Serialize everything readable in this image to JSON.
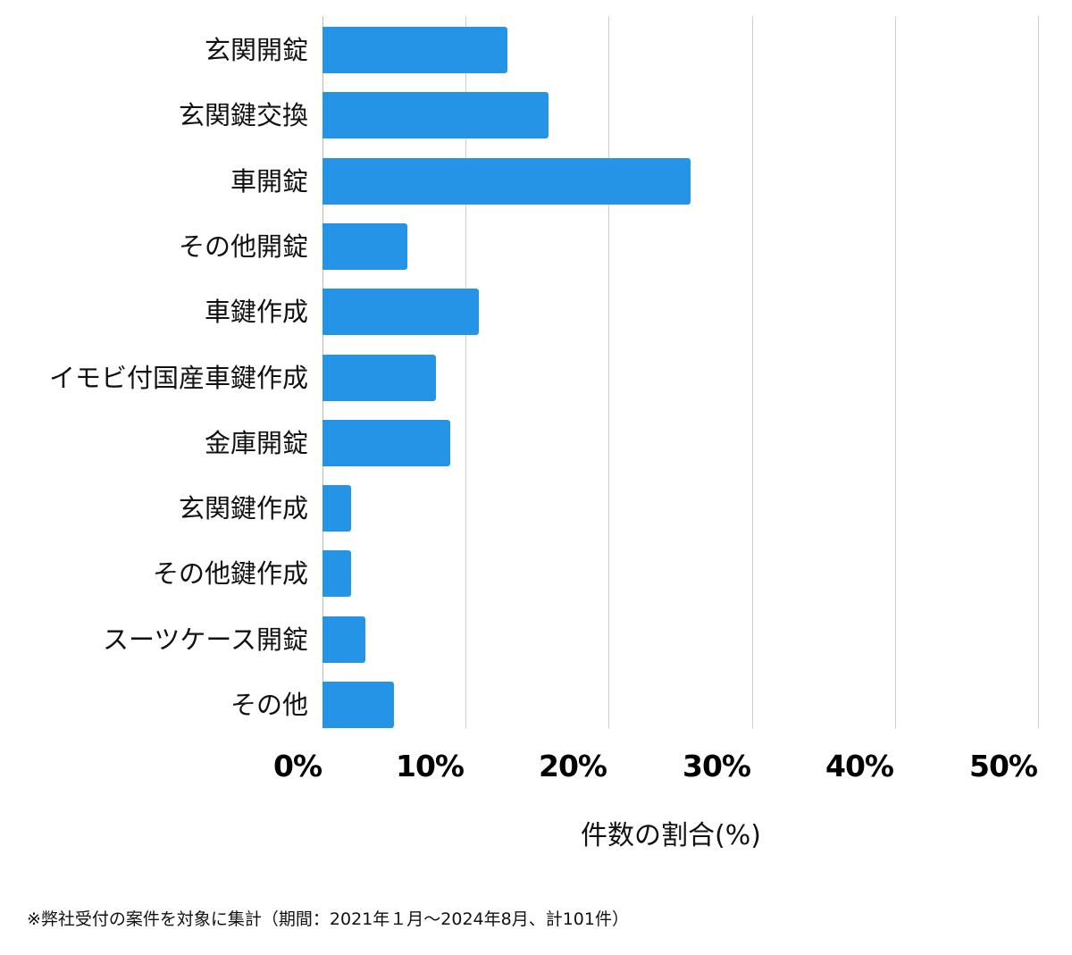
{
  "chart_data": {
    "type": "bar",
    "orientation": "horizontal",
    "title": "",
    "xlabel": "件数の割合(%)",
    "ylabel": "",
    "xlim": [
      0,
      50
    ],
    "x_ticks": [
      "0%",
      "10%",
      "20%",
      "30%",
      "40%",
      "50%"
    ],
    "grid": "vertical",
    "legend": "none",
    "color": "#2694e6",
    "categories": [
      "玄関開錠",
      "玄関鍵交換",
      "車開錠",
      "その他開錠",
      "車鍵作成",
      "イモビ付国産車鍵作成",
      "金庫開錠",
      "玄関鍵作成",
      "その他鍵作成",
      "スーツケース開錠",
      "その他"
    ],
    "values": [
      12.9,
      15.8,
      25.7,
      5.9,
      10.9,
      7.9,
      8.9,
      2.0,
      2.0,
      3.0,
      5.0
    ],
    "annotation": "※弊社受付の案件を対象に集計（期間：2021年１月～2024年8月、計101件）"
  },
  "labels": {
    "x_title": "件数の割合(%)",
    "footnote": "※弊社受付の案件を対象に集計（期間：2021年１月～2024年8月、計101件）",
    "ticks": [
      "0%",
      "10%",
      "20%",
      "30%",
      "40%",
      "50%"
    ]
  }
}
